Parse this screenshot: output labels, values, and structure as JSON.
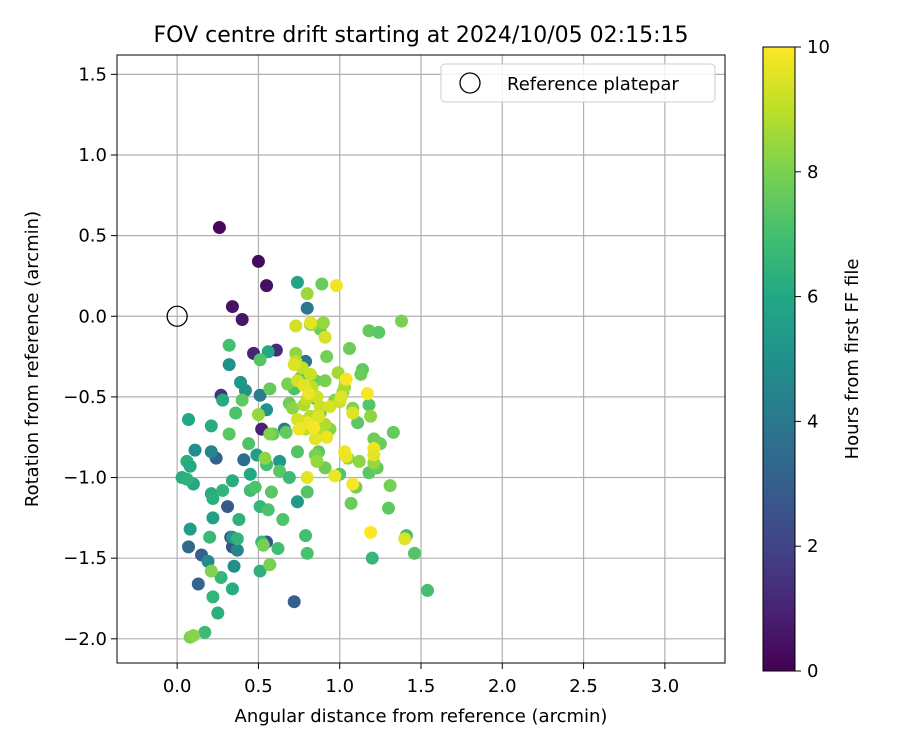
{
  "chart_data": {
    "type": "scatter",
    "title": "FOV centre drift starting at 2024/10/05 02:15:15",
    "xlabel": "Angular distance from reference (arcmin)",
    "ylabel": "Rotation from reference (arcmin)",
    "xlim": [
      -0.37,
      3.37
    ],
    "ylim": [
      -2.15,
      1.62
    ],
    "x_ticks": [
      0.0,
      0.5,
      1.0,
      1.5,
      2.0,
      2.5,
      3.0
    ],
    "x_tick_labels": [
      "0.0",
      "0.5",
      "1.0",
      "1.5",
      "2.0",
      "2.5",
      "3.0"
    ],
    "y_ticks": [
      -2.0,
      -1.5,
      -1.0,
      -0.5,
      0.0,
      0.5,
      1.0,
      1.5
    ],
    "y_tick_labels": [
      "−2.0",
      "−1.5",
      "−1.0",
      "−0.5",
      "0.0",
      "0.5",
      "1.0",
      "1.5"
    ],
    "grid": true,
    "legend": {
      "label": "Reference platepar",
      "placement": "top-right"
    },
    "reference_point": {
      "x": 0.0,
      "y": 0.0
    },
    "colorbar": {
      "label": "Hours from first FF file",
      "colormap": "viridis",
      "range": [
        0,
        10
      ],
      "ticks": [
        0,
        2,
        4,
        6,
        8,
        10
      ],
      "tick_labels": [
        "0",
        "2",
        "4",
        "6",
        "8",
        "10"
      ]
    },
    "points": [
      {
        "x": 0.26,
        "y": 0.55,
        "c": 0.2
      },
      {
        "x": 0.5,
        "y": 0.34,
        "c": 0.3
      },
      {
        "x": 0.55,
        "y": 0.19,
        "c": 0.4
      },
      {
        "x": 0.34,
        "y": 0.06,
        "c": 0.5
      },
      {
        "x": 0.4,
        "y": -0.02,
        "c": 0.6
      },
      {
        "x": 0.47,
        "y": -0.23,
        "c": 1.0
      },
      {
        "x": 0.61,
        "y": -0.21,
        "c": 1.2
      },
      {
        "x": 0.27,
        "y": -0.49,
        "c": 1.5
      },
      {
        "x": 0.52,
        "y": -0.7,
        "c": 0.9
      },
      {
        "x": 0.33,
        "y": -1.37,
        "c": 1.6
      },
      {
        "x": 0.55,
        "y": -1.4,
        "c": 2.4
      },
      {
        "x": 0.72,
        "y": -1.77,
        "c": 3.0
      },
      {
        "x": 0.13,
        "y": -1.66,
        "c": 3.2
      },
      {
        "x": 0.07,
        "y": -1.43,
        "c": 3.4
      },
      {
        "x": 0.15,
        "y": -1.48,
        "c": 3.0
      },
      {
        "x": 0.34,
        "y": -1.43,
        "c": 2.6
      },
      {
        "x": 0.31,
        "y": -1.18,
        "c": 2.8
      },
      {
        "x": 0.24,
        "y": -0.88,
        "c": 3.1
      },
      {
        "x": 0.41,
        "y": -0.89,
        "c": 3.6
      },
      {
        "x": 0.79,
        "y": -0.28,
        "c": 3.8
      },
      {
        "x": 0.51,
        "y": -0.49,
        "c": 4.2
      },
      {
        "x": 0.8,
        "y": 0.05,
        "c": 4.0
      },
      {
        "x": 0.66,
        "y": -0.7,
        "c": 4.3
      },
      {
        "x": 0.21,
        "y": -0.84,
        "c": 4.6
      },
      {
        "x": 0.11,
        "y": -0.83,
        "c": 4.8
      },
      {
        "x": 0.37,
        "y": -1.45,
        "c": 4.5
      },
      {
        "x": 0.19,
        "y": -1.52,
        "c": 4.7
      },
      {
        "x": 0.32,
        "y": -0.3,
        "c": 5.0
      },
      {
        "x": 0.39,
        "y": -0.41,
        "c": 5.2
      },
      {
        "x": 0.42,
        "y": -0.46,
        "c": 5.1
      },
      {
        "x": 0.55,
        "y": -0.58,
        "c": 5.0
      },
      {
        "x": 0.63,
        "y": -0.9,
        "c": 5.4
      },
      {
        "x": 0.49,
        "y": -0.86,
        "c": 5.6
      },
      {
        "x": 0.74,
        "y": -1.15,
        "c": 5.3
      },
      {
        "x": 0.08,
        "y": -1.32,
        "c": 5.5
      },
      {
        "x": 0.22,
        "y": -1.25,
        "c": 5.7
      },
      {
        "x": 0.34,
        "y": -1.37,
        "c": 5.2
      },
      {
        "x": 0.35,
        "y": -1.55,
        "c": 4.9
      },
      {
        "x": 0.74,
        "y": 0.21,
        "c": 5.8
      },
      {
        "x": 0.56,
        "y": -0.22,
        "c": 6.0
      },
      {
        "x": 0.28,
        "y": -0.52,
        "c": 6.1
      },
      {
        "x": 0.21,
        "y": -0.68,
        "c": 6.2
      },
      {
        "x": 0.07,
        "y": -0.64,
        "c": 6.0
      },
      {
        "x": 0.06,
        "y": -0.9,
        "c": 6.3
      },
      {
        "x": 0.08,
        "y": -0.93,
        "c": 6.1
      },
      {
        "x": 0.03,
        "y": -1.0,
        "c": 6.2
      },
      {
        "x": 0.1,
        "y": -1.04,
        "c": 6.0
      },
      {
        "x": 0.06,
        "y": -1.01,
        "c": 6.4
      },
      {
        "x": 0.21,
        "y": -1.1,
        "c": 6.1
      },
      {
        "x": 0.22,
        "y": -1.13,
        "c": 6.3
      },
      {
        "x": 0.28,
        "y": -1.08,
        "c": 6.5
      },
      {
        "x": 0.34,
        "y": -1.02,
        "c": 6.2
      },
      {
        "x": 0.45,
        "y": -0.98,
        "c": 6.0
      },
      {
        "x": 0.51,
        "y": -1.18,
        "c": 6.6
      },
      {
        "x": 0.38,
        "y": -1.26,
        "c": 6.4
      },
      {
        "x": 0.37,
        "y": -1.38,
        "c": 6.5
      },
      {
        "x": 0.2,
        "y": -1.37,
        "c": 6.7
      },
      {
        "x": 0.22,
        "y": -1.74,
        "c": 6.5
      },
      {
        "x": 0.34,
        "y": -1.69,
        "c": 6.2
      },
      {
        "x": 0.25,
        "y": -1.84,
        "c": 6.3
      },
      {
        "x": 0.27,
        "y": -1.62,
        "c": 6.6
      },
      {
        "x": 0.17,
        "y": -1.96,
        "c": 6.8
      },
      {
        "x": 0.51,
        "y": -1.58,
        "c": 6.4
      },
      {
        "x": 0.52,
        "y": -1.4,
        "c": 6.7
      },
      {
        "x": 0.62,
        "y": -1.44,
        "c": 6.9
      },
      {
        "x": 0.79,
        "y": -1.36,
        "c": 7.0
      },
      {
        "x": 0.8,
        "y": -1.47,
        "c": 7.1
      },
      {
        "x": 1.2,
        "y": -1.5,
        "c": 6.6
      },
      {
        "x": 1.41,
        "y": -1.36,
        "c": 7.0
      },
      {
        "x": 1.46,
        "y": -1.47,
        "c": 7.3
      },
      {
        "x": 1.54,
        "y": -1.7,
        "c": 7.0
      },
      {
        "x": 0.45,
        "y": -1.08,
        "c": 6.9
      },
      {
        "x": 0.48,
        "y": -1.06,
        "c": 7.2
      },
      {
        "x": 0.56,
        "y": -1.2,
        "c": 7.1
      },
      {
        "x": 0.58,
        "y": -1.09,
        "c": 7.4
      },
      {
        "x": 0.65,
        "y": -1.26,
        "c": 7.2
      },
      {
        "x": 0.8,
        "y": -1.09,
        "c": 7.3
      },
      {
        "x": 0.55,
        "y": -0.92,
        "c": 7.0
      },
      {
        "x": 0.63,
        "y": -0.96,
        "c": 7.4
      },
      {
        "x": 0.69,
        "y": -1.0,
        "c": 6.8
      },
      {
        "x": 0.74,
        "y": -0.84,
        "c": 7.3
      },
      {
        "x": 0.59,
        "y": -0.73,
        "c": 7.5
      },
      {
        "x": 0.67,
        "y": -0.72,
        "c": 7.6
      },
      {
        "x": 0.44,
        "y": -0.79,
        "c": 7.2
      },
      {
        "x": 0.36,
        "y": -0.6,
        "c": 7.1
      },
      {
        "x": 0.4,
        "y": -0.52,
        "c": 7.5
      },
      {
        "x": 0.32,
        "y": -0.18,
        "c": 7.0
      },
      {
        "x": 0.51,
        "y": -0.27,
        "c": 7.3
      },
      {
        "x": 0.57,
        "y": -0.45,
        "c": 7.6
      },
      {
        "x": 0.32,
        "y": -0.73,
        "c": 7.4
      },
      {
        "x": 0.69,
        "y": -0.54,
        "c": 7.8
      },
      {
        "x": 0.72,
        "y": -0.45,
        "c": 7.1
      },
      {
        "x": 0.76,
        "y": -0.38,
        "c": 7.4
      },
      {
        "x": 0.85,
        "y": -0.51,
        "c": 7.2
      },
      {
        "x": 0.88,
        "y": -0.6,
        "c": 7.6
      },
      {
        "x": 0.87,
        "y": -0.84,
        "c": 7.5
      },
      {
        "x": 0.91,
        "y": -0.94,
        "c": 7.8
      },
      {
        "x": 1.0,
        "y": -0.98,
        "c": 7.3
      },
      {
        "x": 1.07,
        "y": -1.16,
        "c": 7.7
      },
      {
        "x": 1.1,
        "y": -1.06,
        "c": 7.9
      },
      {
        "x": 1.18,
        "y": -0.97,
        "c": 7.4
      },
      {
        "x": 1.23,
        "y": -0.94,
        "c": 7.6
      },
      {
        "x": 1.25,
        "y": -0.79,
        "c": 7.7
      },
      {
        "x": 1.31,
        "y": -1.05,
        "c": 7.9
      },
      {
        "x": 1.3,
        "y": -1.19,
        "c": 7.5
      },
      {
        "x": 1.33,
        "y": -0.72,
        "c": 7.6
      },
      {
        "x": 1.21,
        "y": -0.76,
        "c": 7.8
      },
      {
        "x": 1.11,
        "y": -0.66,
        "c": 7.4
      },
      {
        "x": 1.18,
        "y": -0.55,
        "c": 7.3
      },
      {
        "x": 1.14,
        "y": -0.33,
        "c": 7.5
      },
      {
        "x": 1.13,
        "y": -0.36,
        "c": 7.7
      },
      {
        "x": 1.06,
        "y": -0.2,
        "c": 7.8
      },
      {
        "x": 1.18,
        "y": -0.09,
        "c": 7.6
      },
      {
        "x": 1.24,
        "y": -0.1,
        "c": 7.4
      },
      {
        "x": 1.38,
        "y": -0.03,
        "c": 8.0
      },
      {
        "x": 0.89,
        "y": 0.2,
        "c": 7.7
      },
      {
        "x": 0.88,
        "y": -0.08,
        "c": 7.8
      },
      {
        "x": 0.82,
        "y": -0.05,
        "c": 7.5
      },
      {
        "x": 0.92,
        "y": -0.25,
        "c": 7.9
      },
      {
        "x": 0.85,
        "y": -0.4,
        "c": 7.7
      },
      {
        "x": 0.91,
        "y": -0.4,
        "c": 8.0
      },
      {
        "x": 0.97,
        "y": -0.52,
        "c": 8.1
      },
      {
        "x": 1.02,
        "y": -0.47,
        "c": 8.2
      },
      {
        "x": 1.08,
        "y": -0.57,
        "c": 8.1
      },
      {
        "x": 1.12,
        "y": -0.9,
        "c": 8.3
      },
      {
        "x": 1.05,
        "y": -0.88,
        "c": 8.2
      },
      {
        "x": 0.85,
        "y": -0.86,
        "c": 8.0
      },
      {
        "x": 0.86,
        "y": -0.9,
        "c": 8.4
      },
      {
        "x": 0.94,
        "y": -0.7,
        "c": 8.2
      },
      {
        "x": 1.19,
        "y": -0.62,
        "c": 8.3
      },
      {
        "x": 1.21,
        "y": -0.91,
        "c": 8.4
      },
      {
        "x": 0.08,
        "y": -1.99,
        "c": 8.0
      },
      {
        "x": 0.1,
        "y": -1.98,
        "c": 8.2
      },
      {
        "x": 0.21,
        "y": -1.58,
        "c": 8.1
      },
      {
        "x": 0.57,
        "y": -1.54,
        "c": 8.0
      },
      {
        "x": 0.53,
        "y": -1.42,
        "c": 7.9
      },
      {
        "x": 0.54,
        "y": -0.88,
        "c": 8.3
      },
      {
        "x": 0.57,
        "y": -0.73,
        "c": 8.1
      },
      {
        "x": 0.5,
        "y": -0.61,
        "c": 8.4
      },
      {
        "x": 0.71,
        "y": -0.57,
        "c": 8.2
      },
      {
        "x": 0.68,
        "y": -0.42,
        "c": 8.0
      },
      {
        "x": 0.73,
        "y": -0.23,
        "c": 8.3
      },
      {
        "x": 0.8,
        "y": 0.14,
        "c": 8.5
      },
      {
        "x": 0.83,
        "y": -0.05,
        "c": 8.6
      },
      {
        "x": 0.9,
        "y": -0.04,
        "c": 8.4
      },
      {
        "x": 0.99,
        "y": -0.35,
        "c": 8.6
      },
      {
        "x": 1.03,
        "y": -0.44,
        "c": 8.7
      },
      {
        "x": 0.78,
        "y": -0.55,
        "c": 8.8
      },
      {
        "x": 0.82,
        "y": -0.62,
        "c": 8.9
      },
      {
        "x": 0.76,
        "y": -0.65,
        "c": 8.6
      },
      {
        "x": 0.79,
        "y": -0.7,
        "c": 9.0
      },
      {
        "x": 0.86,
        "y": -0.72,
        "c": 8.9
      },
      {
        "x": 0.91,
        "y": -0.67,
        "c": 8.8
      },
      {
        "x": 0.73,
        "y": -0.28,
        "c": 9.0
      },
      {
        "x": 0.77,
        "y": -0.32,
        "c": 9.1
      },
      {
        "x": 0.82,
        "y": -0.36,
        "c": 9.2
      },
      {
        "x": 0.83,
        "y": -0.44,
        "c": 9.0
      },
      {
        "x": 0.86,
        "y": -0.5,
        "c": 9.3
      },
      {
        "x": 0.8,
        "y": -0.51,
        "c": 9.1
      },
      {
        "x": 0.88,
        "y": -0.56,
        "c": 9.2
      },
      {
        "x": 0.94,
        "y": -0.56,
        "c": 9.4
      },
      {
        "x": 1.0,
        "y": -0.53,
        "c": 9.2
      },
      {
        "x": 1.01,
        "y": -0.5,
        "c": 9.5
      },
      {
        "x": 0.74,
        "y": -0.4,
        "c": 9.3
      },
      {
        "x": 0.72,
        "y": -0.3,
        "c": 9.5
      },
      {
        "x": 0.73,
        "y": -0.06,
        "c": 9.3
      },
      {
        "x": 0.82,
        "y": -0.04,
        "c": 9.6
      },
      {
        "x": 0.91,
        "y": -0.13,
        "c": 9.4
      },
      {
        "x": 0.78,
        "y": -0.43,
        "c": 9.6
      },
      {
        "x": 0.81,
        "y": -0.48,
        "c": 9.7
      },
      {
        "x": 0.87,
        "y": -0.62,
        "c": 9.5
      },
      {
        "x": 0.8,
        "y": -0.66,
        "c": 9.8
      },
      {
        "x": 0.85,
        "y": -0.76,
        "c": 9.6
      },
      {
        "x": 0.92,
        "y": -0.75,
        "c": 9.7
      },
      {
        "x": 0.74,
        "y": -0.64,
        "c": 9.4
      },
      {
        "x": 0.75,
        "y": -0.7,
        "c": 9.8
      },
      {
        "x": 0.84,
        "y": -0.69,
        "c": 9.9
      },
      {
        "x": 0.8,
        "y": -1.0,
        "c": 9.6
      },
      {
        "x": 0.97,
        "y": -0.99,
        "c": 9.7
      },
      {
        "x": 1.03,
        "y": -0.84,
        "c": 9.8
      },
      {
        "x": 1.04,
        "y": -0.39,
        "c": 9.9
      },
      {
        "x": 1.08,
        "y": -0.6,
        "c": 9.5
      },
      {
        "x": 1.04,
        "y": -0.87,
        "c": 9.7
      },
      {
        "x": 1.08,
        "y": -1.04,
        "c": 9.9
      },
      {
        "x": 1.21,
        "y": -0.82,
        "c": 9.8
      },
      {
        "x": 1.21,
        "y": -0.86,
        "c": 9.6
      },
      {
        "x": 1.17,
        "y": -0.48,
        "c": 9.9
      },
      {
        "x": 1.19,
        "y": -1.34,
        "c": 10.0
      },
      {
        "x": 1.4,
        "y": -1.38,
        "c": 9.5
      },
      {
        "x": 0.98,
        "y": 0.19,
        "c": 9.8
      }
    ]
  }
}
